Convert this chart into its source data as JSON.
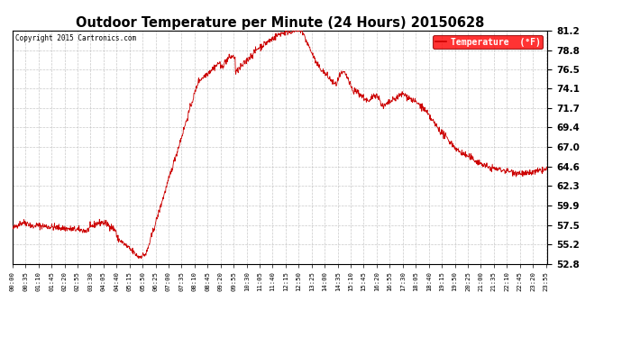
{
  "title": "Outdoor Temperature per Minute (24 Hours) 20150628",
  "copyright": "Copyright 2015 Cartronics.com",
  "legend_label": "Temperature  (°F)",
  "line_color": "#cc0000",
  "background_color": "#ffffff",
  "grid_color": "#bbbbbb",
  "ylim": [
    52.8,
    81.2
  ],
  "yticks": [
    52.8,
    55.2,
    57.5,
    59.9,
    62.3,
    64.6,
    67.0,
    69.4,
    71.7,
    74.1,
    76.5,
    78.8,
    81.2
  ],
  "xtick_labels": [
    "00:00",
    "00:35",
    "01:10",
    "01:45",
    "02:20",
    "02:55",
    "03:30",
    "04:05",
    "04:40",
    "05:15",
    "05:50",
    "06:25",
    "07:00",
    "07:35",
    "08:10",
    "08:45",
    "09:20",
    "09:55",
    "10:30",
    "11:05",
    "11:40",
    "12:15",
    "12:50",
    "13:25",
    "14:00",
    "14:35",
    "15:10",
    "15:45",
    "16:20",
    "16:55",
    "17:30",
    "18:05",
    "18:40",
    "19:15",
    "19:50",
    "20:25",
    "21:00",
    "21:35",
    "22:10",
    "22:45",
    "23:20",
    "23:55"
  ],
  "num_points": 1440
}
